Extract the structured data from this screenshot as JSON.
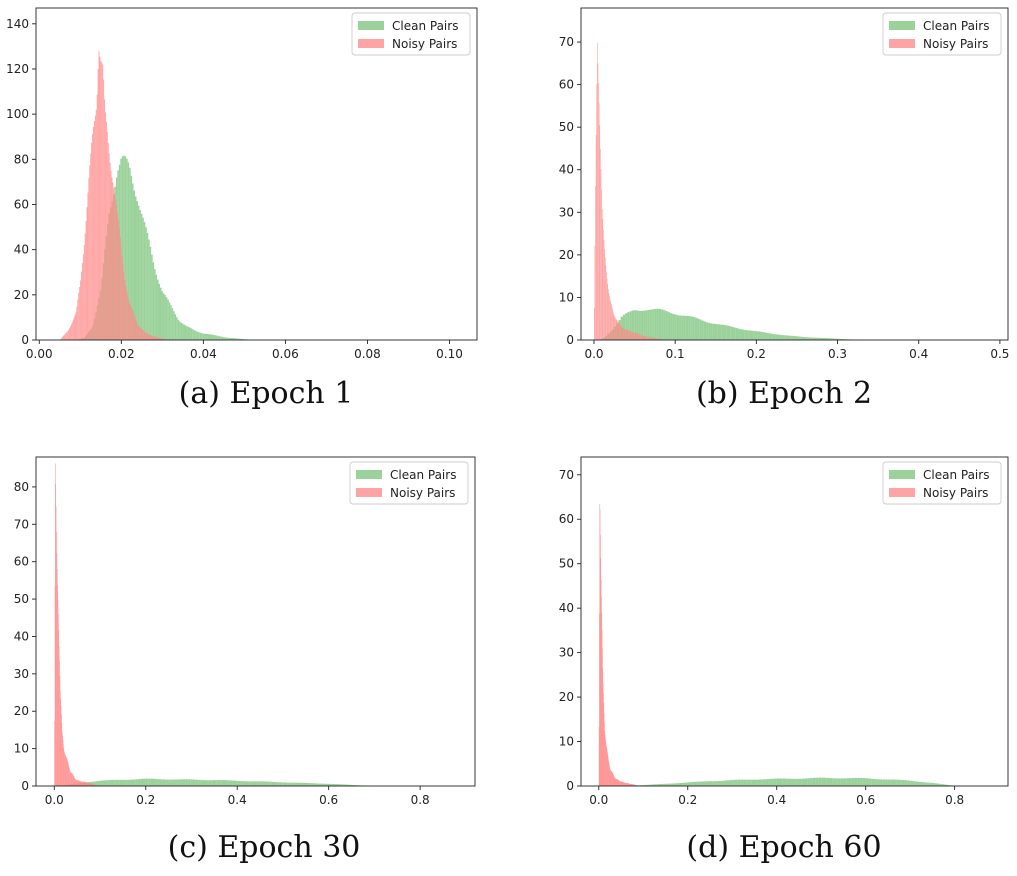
{
  "colors": {
    "clean": "#7fc57f",
    "noisy": "#ff8a8a",
    "axis": "#222222"
  },
  "legend": {
    "placement": "top-right",
    "entries": [
      "Clean Pairs",
      "Noisy Pairs"
    ]
  },
  "chart_data": [
    {
      "caption": "(a) Epoch 1",
      "type": "histogram",
      "xlim": [
        -0.0008,
        0.1067
      ],
      "ylim": [
        0,
        147
      ],
      "xticks": [
        "0.00",
        "0.02",
        "0.04",
        "0.06",
        "0.08",
        "0.10"
      ],
      "xtick_values": [
        0,
        0.02,
        0.04,
        0.06,
        0.08,
        0.1
      ],
      "yticks": [
        "0",
        "20",
        "40",
        "60",
        "80",
        "100",
        "120",
        "140"
      ],
      "ytick_values": [
        0,
        20,
        40,
        60,
        80,
        100,
        120,
        140
      ],
      "series": [
        {
          "name": "Clean Pairs",
          "points": [
            [
              0.009,
              0
            ],
            [
              0.011,
              1
            ],
            [
              0.013,
              6
            ],
            [
              0.015,
              22
            ],
            [
              0.017,
              55
            ],
            [
              0.019,
              77
            ],
            [
              0.02,
              80
            ],
            [
              0.022,
              75
            ],
            [
              0.024,
              64
            ],
            [
              0.026,
              48
            ],
            [
              0.028,
              33
            ],
            [
              0.03,
              22
            ],
            [
              0.032,
              15
            ],
            [
              0.034,
              9
            ],
            [
              0.036,
              6
            ],
            [
              0.038,
              4
            ],
            [
              0.04,
              3
            ],
            [
              0.043,
              2
            ],
            [
              0.046,
              1
            ],
            [
              0.05,
              0.4
            ],
            [
              0.052,
              0
            ]
          ]
        },
        {
          "name": "Noisy Pairs",
          "points": [
            [
              0.005,
              0
            ],
            [
              0.007,
              4
            ],
            [
              0.009,
              12
            ],
            [
              0.01,
              25
            ],
            [
              0.011,
              45
            ],
            [
              0.012,
              68
            ],
            [
              0.013,
              88
            ],
            [
              0.014,
              108
            ],
            [
              0.015,
              125
            ],
            [
              0.0145,
              135
            ],
            [
              0.0155,
              118
            ],
            [
              0.016,
              98
            ],
            [
              0.017,
              85
            ],
            [
              0.018,
              72
            ],
            [
              0.019,
              55
            ],
            [
              0.02,
              40
            ],
            [
              0.021,
              26
            ],
            [
              0.022,
              16
            ],
            [
              0.024,
              7
            ],
            [
              0.026,
              3
            ],
            [
              0.029,
              1
            ],
            [
              0.032,
              0
            ]
          ]
        }
      ]
    },
    {
      "caption": "(b) Epoch 2",
      "type": "histogram",
      "xlim": [
        -0.016,
        0.51
      ],
      "ylim": [
        0,
        78
      ],
      "xticks": [
        "0.0",
        "0.1",
        "0.2",
        "0.3",
        "0.4",
        "0.5"
      ],
      "xtick_values": [
        0,
        0.1,
        0.2,
        0.3,
        0.4,
        0.5
      ],
      "yticks": [
        "0",
        "10",
        "20",
        "30",
        "40",
        "50",
        "60",
        "70"
      ],
      "ytick_values": [
        0,
        10,
        20,
        30,
        40,
        50,
        60,
        70
      ],
      "series": [
        {
          "name": "Clean Pairs",
          "points": [
            [
              0.008,
              0
            ],
            [
              0.015,
              1
            ],
            [
              0.025,
              3
            ],
            [
              0.035,
              5.5
            ],
            [
              0.05,
              7
            ],
            [
              0.065,
              7.3
            ],
            [
              0.08,
              7
            ],
            [
              0.1,
              6.3
            ],
            [
              0.12,
              5.3
            ],
            [
              0.14,
              4.3
            ],
            [
              0.16,
              3.4
            ],
            [
              0.18,
              2.7
            ],
            [
              0.2,
              2
            ],
            [
              0.22,
              1.5
            ],
            [
              0.24,
              1
            ],
            [
              0.26,
              0.7
            ],
            [
              0.28,
              0.5
            ],
            [
              0.3,
              0.3
            ],
            [
              0.32,
              0.1
            ],
            [
              0.34,
              0
            ]
          ]
        },
        {
          "name": "Noisy Pairs",
          "points": [
            [
              0.0,
              0
            ],
            [
              0.002,
              40
            ],
            [
              0.004,
              74
            ],
            [
              0.006,
              58
            ],
            [
              0.008,
              42
            ],
            [
              0.01,
              30
            ],
            [
              0.012,
              25
            ],
            [
              0.014,
              20
            ],
            [
              0.016,
              15
            ],
            [
              0.018,
              11
            ],
            [
              0.02,
              9
            ],
            [
              0.025,
              6
            ],
            [
              0.03,
              4
            ],
            [
              0.035,
              3
            ],
            [
              0.04,
              2.3
            ],
            [
              0.05,
              1.8
            ],
            [
              0.06,
              1
            ],
            [
              0.07,
              0.6
            ],
            [
              0.08,
              0.3
            ],
            [
              0.09,
              0
            ]
          ]
        }
      ]
    },
    {
      "caption": "(c) Epoch 30",
      "type": "histogram",
      "xlim": [
        -0.04,
        0.92
      ],
      "ylim": [
        0,
        88
      ],
      "xticks": [
        "0.0",
        "0.2",
        "0.4",
        "0.6",
        "0.8"
      ],
      "xtick_values": [
        0,
        0.2,
        0.4,
        0.6,
        0.8
      ],
      "yticks": [
        "0",
        "10",
        "20",
        "30",
        "40",
        "50",
        "60",
        "70",
        "80"
      ],
      "ytick_values": [
        0,
        10,
        20,
        30,
        40,
        50,
        60,
        70,
        80
      ],
      "series": [
        {
          "name": "Clean Pairs",
          "points": [
            [
              0.01,
              0
            ],
            [
              0.03,
              0.4
            ],
            [
              0.06,
              0.9
            ],
            [
              0.1,
              1.4
            ],
            [
              0.15,
              1.7
            ],
            [
              0.2,
              1.9
            ],
            [
              0.25,
              1.8
            ],
            [
              0.3,
              1.7
            ],
            [
              0.35,
              1.6
            ],
            [
              0.4,
              1.4
            ],
            [
              0.45,
              1.2
            ],
            [
              0.5,
              1.0
            ],
            [
              0.55,
              0.8
            ],
            [
              0.6,
              0.6
            ],
            [
              0.65,
              0.3
            ],
            [
              0.68,
              0.1
            ],
            [
              0.7,
              0
            ]
          ]
        },
        {
          "name": "Noisy Pairs",
          "points": [
            [
              0.0,
              0
            ],
            [
              0.002,
              84
            ],
            [
              0.005,
              62
            ],
            [
              0.009,
              47
            ],
            [
              0.013,
              25
            ],
            [
              0.017,
              14
            ],
            [
              0.021,
              10
            ],
            [
              0.025,
              8
            ],
            [
              0.03,
              6
            ],
            [
              0.035,
              4
            ],
            [
              0.04,
              3
            ],
            [
              0.045,
              2
            ],
            [
              0.05,
              1.5
            ],
            [
              0.06,
              1.2
            ],
            [
              0.07,
              1
            ],
            [
              0.08,
              0.6
            ],
            [
              0.09,
              0.3
            ],
            [
              0.1,
              0
            ]
          ]
        }
      ]
    },
    {
      "caption": "(d) Epoch 60",
      "type": "histogram",
      "xlim": [
        -0.04,
        0.92
      ],
      "ylim": [
        0,
        74
      ],
      "xticks": [
        "0.0",
        "0.2",
        "0.4",
        "0.6",
        "0.8"
      ],
      "xtick_values": [
        0,
        0.2,
        0.4,
        0.6,
        0.8
      ],
      "yticks": [
        "0",
        "10",
        "20",
        "30",
        "40",
        "50",
        "60",
        "70"
      ],
      "ytick_values": [
        0,
        10,
        20,
        30,
        40,
        50,
        60,
        70
      ],
      "series": [
        {
          "name": "Clean Pairs",
          "points": [
            [
              0.05,
              0
            ],
            [
              0.1,
              0.2
            ],
            [
              0.15,
              0.5
            ],
            [
              0.2,
              0.8
            ],
            [
              0.25,
              1.1
            ],
            [
              0.3,
              1.3
            ],
            [
              0.35,
              1.5
            ],
            [
              0.4,
              1.6
            ],
            [
              0.45,
              1.7
            ],
            [
              0.5,
              1.8
            ],
            [
              0.55,
              1.8
            ],
            [
              0.6,
              1.7
            ],
            [
              0.65,
              1.5
            ],
            [
              0.7,
              1.2
            ],
            [
              0.75,
              0.7
            ],
            [
              0.78,
              0.3
            ],
            [
              0.8,
              0
            ]
          ]
        },
        {
          "name": "Noisy Pairs",
          "points": [
            [
              0.0,
              0
            ],
            [
              0.002,
              70
            ],
            [
              0.005,
              47
            ],
            [
              0.009,
              23
            ],
            [
              0.013,
              13
            ],
            [
              0.017,
              9
            ],
            [
              0.021,
              6
            ],
            [
              0.025,
              4
            ],
            [
              0.03,
              3
            ],
            [
              0.035,
              2
            ],
            [
              0.04,
              1.5
            ],
            [
              0.05,
              1
            ],
            [
              0.06,
              0.7
            ],
            [
              0.07,
              0.5
            ],
            [
              0.08,
              0.3
            ],
            [
              0.09,
              0
            ]
          ]
        }
      ]
    }
  ]
}
